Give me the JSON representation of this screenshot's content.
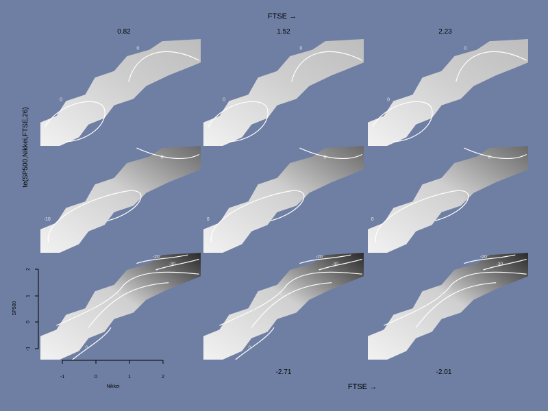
{
  "chart_data": {
    "type": "heatmap",
    "description_title": "te(SP500,Nikkei,FTSE,26)",
    "top_label": "FTSE →",
    "bottom_label": "FTSE →",
    "y_title": "te(SP500,Nikkei,FTSE,26)",
    "panel_labels_top": [
      "0.82",
      "1.52",
      "2.23"
    ],
    "panel_labels_bottom": [
      "-2.71",
      "-2.01"
    ],
    "xlabel": "Nikkei",
    "ylabel": "SP500",
    "x_ticks": [
      "-1",
      "0",
      "1",
      "2"
    ],
    "y_ticks": [
      "-1",
      "0",
      "1",
      "2"
    ],
    "xlim": [
      -1.7,
      2.1
    ],
    "ylim": [
      -1.5,
      2.15
    ],
    "panels": [
      {
        "row": 0,
        "col": 0,
        "ftse": "0.82",
        "contours": [
          {
            "label": "0"
          },
          {
            "label": "0"
          }
        ]
      },
      {
        "row": 0,
        "col": 1,
        "ftse": "1.52",
        "contours": [
          {
            "label": "0"
          },
          {
            "label": "0"
          }
        ]
      },
      {
        "row": 0,
        "col": 2,
        "ftse": "2.23",
        "contours": [
          {
            "label": "0"
          },
          {
            "label": "0"
          }
        ]
      },
      {
        "row": 1,
        "col": 0,
        "contours": [
          {
            "label": "-10"
          },
          {
            "label": "0"
          }
        ]
      },
      {
        "row": 1,
        "col": 1,
        "contours": [
          {
            "label": "0"
          },
          {
            "label": "0"
          }
        ]
      },
      {
        "row": 1,
        "col": 2,
        "contours": [
          {
            "label": "0"
          },
          {
            "label": "0"
          }
        ]
      },
      {
        "row": 2,
        "col": 0,
        "contours": [
          {
            "label": "-10"
          },
          {
            "label": "-20"
          },
          {
            "label": "-30"
          },
          {
            "label": "-40"
          },
          {
            "label": "0"
          }
        ]
      },
      {
        "row": 2,
        "col": 1,
        "ftse": "-2.71",
        "contours": [
          {
            "label": "-10"
          },
          {
            "label": "-20"
          },
          {
            "label": "-30"
          },
          {
            "label": "-40"
          },
          {
            "label": "0"
          }
        ]
      },
      {
        "row": 2,
        "col": 2,
        "ftse": "-2.01",
        "contours": [
          {
            "label": "-10"
          },
          {
            "label": "-20"
          },
          {
            "label": "-30"
          },
          {
            "label": "0"
          }
        ]
      }
    ],
    "colors": {
      "background": "#6f7fa3",
      "contour": "#ffffff",
      "text": "#000000"
    }
  }
}
